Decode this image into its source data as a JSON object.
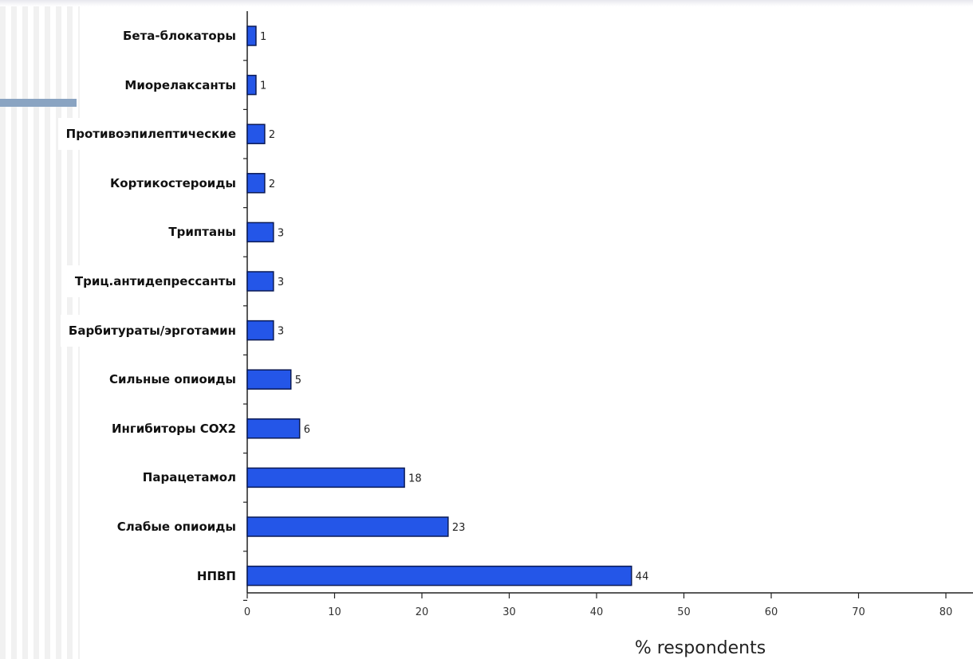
{
  "chart_data": {
    "type": "bar",
    "orientation": "horizontal",
    "categories": [
      "Бета-блокаторы",
      "Миорелаксанты",
      "Противоэпилептические",
      "Кортикостероиды",
      "Триптаны",
      "Триц.антидепрессанты",
      "Барбитураты/эрготамин",
      "Сильные опиоиды",
      "Ингибиторы COX2",
      "Парацетамол",
      "Слабые опиоиды",
      "НПВП"
    ],
    "values": [
      1,
      1,
      2,
      2,
      3,
      3,
      3,
      5,
      6,
      18,
      23,
      44
    ],
    "xlabel": "% respondents",
    "xlim": [
      0,
      83
    ],
    "xticks": [
      0,
      10,
      20,
      30,
      40,
      50,
      60,
      70,
      80
    ],
    "bar_color": "#2456e8",
    "bar_edge_color": "#0a1a55",
    "grid": false
  }
}
